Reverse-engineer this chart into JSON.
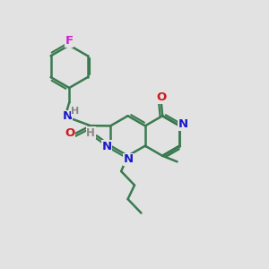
{
  "bg_color": "#e2e2e2",
  "bond_color": "#3a7a50",
  "bond_width": 1.8,
  "N_color": "#1a1acc",
  "O_color": "#cc1a1a",
  "F_color": "#cc22cc",
  "H_color": "#888888",
  "xlim": [
    0,
    10
  ],
  "ylim": [
    0,
    10
  ],
  "figsize": [
    3.0,
    3.0
  ],
  "dpi": 100
}
